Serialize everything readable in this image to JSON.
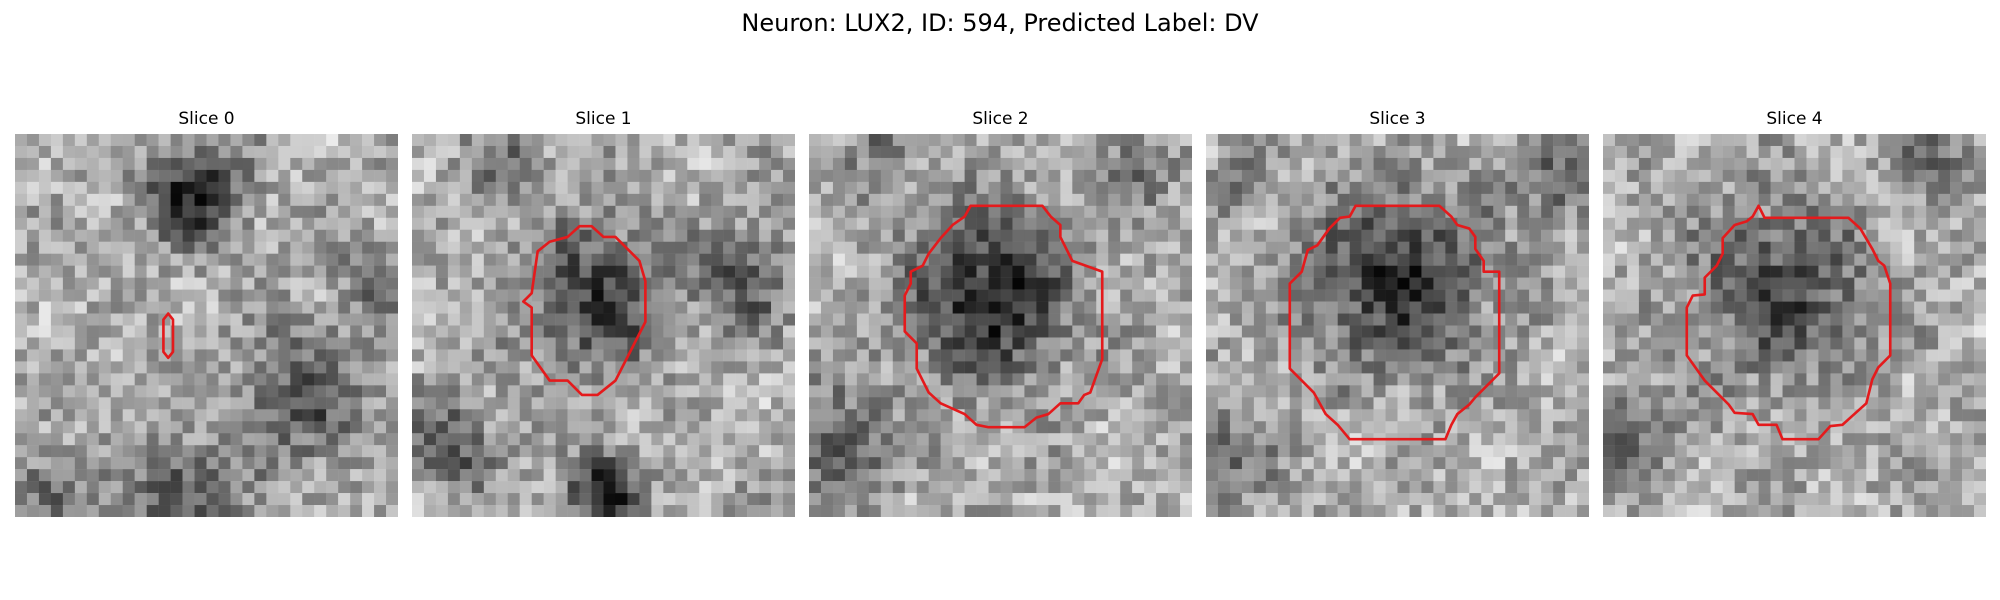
{
  "figure": {
    "title": "Neuron: LUX2, ID: 594, Predicted Label: DV"
  },
  "colors": {
    "contour": "#e41a1c",
    "background": "#ffffff"
  },
  "panels": [
    {
      "title": "Slice 0",
      "contour": "small-vertical-ellipse"
    },
    {
      "title": "Slice 1",
      "contour": "octagon"
    },
    {
      "title": "Slice 2",
      "contour": "octagon"
    },
    {
      "title": "Slice 3",
      "contour": "octagon"
    },
    {
      "title": "Slice 4",
      "contour": "octagon"
    }
  ]
}
